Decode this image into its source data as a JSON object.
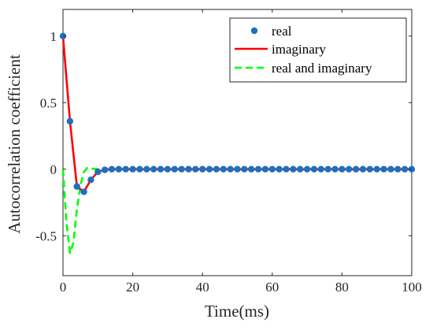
{
  "chart_data": {
    "type": "line",
    "xlabel": "Time(ms)",
    "ylabel": "Autocorrelation coefficient",
    "xlim": [
      0,
      100
    ],
    "ylim": [
      -0.8,
      1.2
    ],
    "xticks": [
      0,
      20,
      40,
      60,
      80,
      100
    ],
    "yticks": [
      -0.5,
      0,
      0.5,
      1
    ],
    "xtick_labels": [
      "0",
      "20",
      "40",
      "60",
      "80",
      "100"
    ],
    "ytick_labels": [
      "-0.5",
      "0",
      "0.5",
      "1"
    ],
    "grid": false,
    "legend_position": "top-right",
    "series": [
      {
        "name": "real",
        "style": "markers",
        "color": "#1f6fbf",
        "x": [
          0,
          2,
          4,
          6,
          8,
          10,
          12,
          14,
          16,
          18,
          20,
          22,
          24,
          26,
          28,
          30,
          32,
          34,
          36,
          38,
          40,
          42,
          44,
          46,
          48,
          50,
          52,
          54,
          56,
          58,
          60,
          62,
          64,
          66,
          68,
          70,
          72,
          74,
          76,
          78,
          80,
          82,
          84,
          86,
          88,
          90,
          92,
          94,
          96,
          98,
          100
        ],
        "y": [
          1.0,
          0.36,
          -0.13,
          -0.17,
          -0.08,
          -0.02,
          -0.005,
          0,
          0,
          0,
          0,
          0,
          0,
          0,
          0,
          0,
          0,
          0,
          0,
          0,
          0,
          0,
          0,
          0,
          0,
          0,
          0,
          0,
          0,
          0,
          0,
          0,
          0,
          0,
          0,
          0,
          0,
          0,
          0,
          0,
          0,
          0,
          0,
          0,
          0,
          0,
          0,
          0,
          0,
          0,
          0
        ]
      },
      {
        "name": "imaginary",
        "style": "solid",
        "color": "#ff0000",
        "x": [
          0,
          2,
          4,
          6,
          8,
          10,
          12,
          14,
          16,
          18,
          20,
          22,
          24,
          26,
          28,
          30,
          32,
          34,
          36,
          38,
          40,
          42,
          44,
          46,
          48,
          50,
          52,
          54,
          56,
          58,
          60,
          62,
          64,
          66,
          68,
          70,
          72,
          74,
          76,
          78,
          80,
          82,
          84,
          86,
          88,
          90,
          92,
          94,
          96,
          98,
          100
        ],
        "y": [
          1.0,
          0.36,
          -0.13,
          -0.17,
          -0.08,
          -0.02,
          -0.005,
          0,
          0,
          0,
          0,
          0,
          0,
          0,
          0,
          0,
          0,
          0,
          0,
          0,
          0,
          0,
          0,
          0,
          0,
          0,
          0,
          0,
          0,
          0,
          0,
          0,
          0,
          0,
          0,
          0,
          0,
          0,
          0,
          0,
          0,
          0,
          0,
          0,
          0,
          0,
          0,
          0,
          0,
          0,
          0
        ]
      },
      {
        "name": "real and imaginary",
        "style": "dashed",
        "color": "#00ff00",
        "x": [
          0,
          1,
          2,
          3,
          4,
          5,
          6,
          7,
          8,
          10,
          12,
          14,
          16,
          18,
          20,
          22,
          24,
          26,
          28,
          30,
          32,
          34,
          36,
          38,
          40,
          42,
          44,
          46,
          48,
          50,
          52,
          54,
          56,
          58,
          60,
          62,
          64,
          66,
          68,
          70,
          72,
          74,
          76,
          78,
          80,
          82,
          84,
          86,
          88,
          90,
          92,
          94,
          96,
          98,
          100
        ],
        "y": [
          0,
          -0.4,
          -0.63,
          -0.55,
          -0.3,
          -0.12,
          -0.02,
          0.01,
          0.005,
          0,
          0,
          0,
          0,
          0,
          0,
          0,
          0,
          0,
          0,
          0,
          0,
          0,
          0,
          0,
          0,
          0,
          0,
          0,
          0,
          0,
          0,
          0,
          0,
          0,
          0,
          0,
          0,
          0,
          0,
          0,
          0,
          0,
          0,
          0,
          0,
          0,
          0,
          0,
          0,
          0,
          0,
          0,
          0,
          0,
          0
        ]
      }
    ]
  }
}
